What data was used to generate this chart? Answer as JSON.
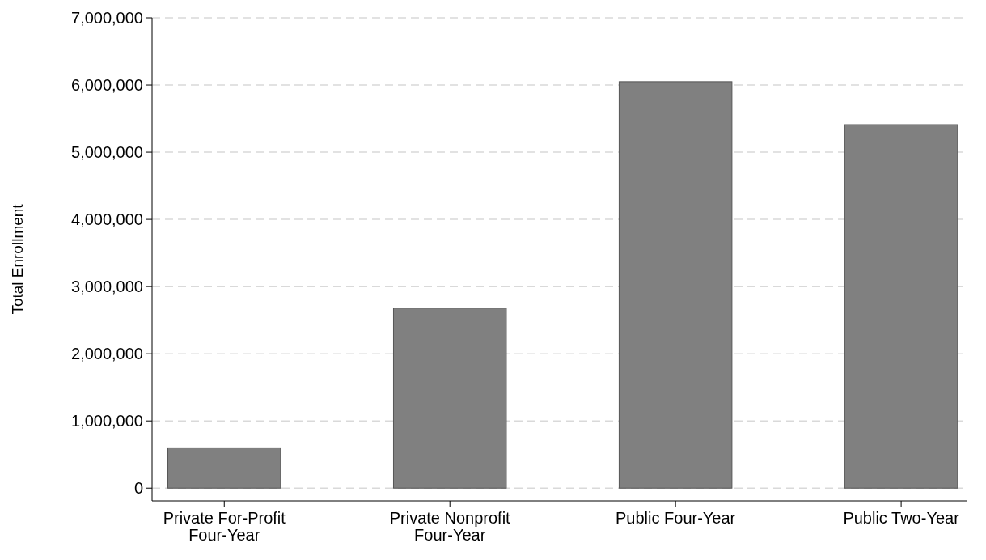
{
  "chart_data": {
    "type": "bar",
    "ylabel": "Total Enrollment",
    "categories": [
      "Private For-Profit\nFour-Year",
      "Private Nonprofit\nFour-Year",
      "Public Four-Year",
      "Public Two-Year"
    ],
    "values": [
      600000,
      2680000,
      6050000,
      5410000
    ],
    "color": "#808080",
    "ylim": [
      -190000,
      7000000
    ],
    "yticks": [
      {
        "value": 0,
        "label": "0"
      },
      {
        "value": 1000000,
        "label": "1,000,000"
      },
      {
        "value": 2000000,
        "label": "2,000,000"
      },
      {
        "value": 3000000,
        "label": "3,000,000"
      },
      {
        "value": 4000000,
        "label": "4,000,000"
      },
      {
        "value": 5000000,
        "label": "5,000,000"
      },
      {
        "value": 6000000,
        "label": "6,000,000"
      },
      {
        "value": 7000000,
        "label": "7,000,000"
      }
    ],
    "grid": "y"
  }
}
